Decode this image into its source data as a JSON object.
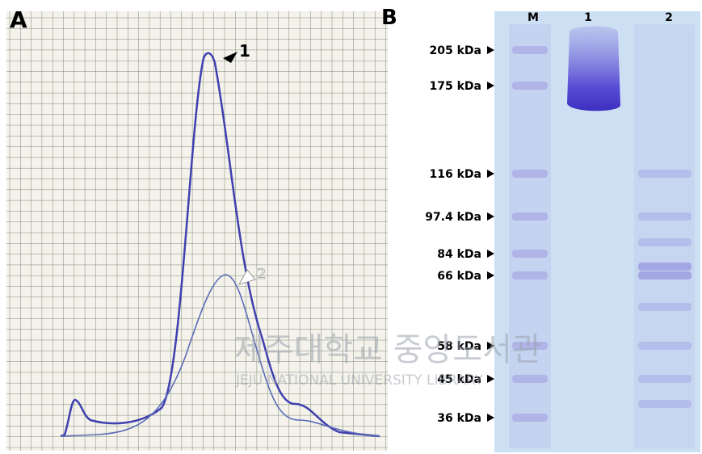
{
  "panel_a": {
    "label": "A",
    "peak_labels": [
      "1",
      "2"
    ]
  },
  "panel_b": {
    "label": "B",
    "lanes": [
      "M",
      "1",
      "2"
    ],
    "markers": [
      "205 kDa",
      "175 kDa",
      "116 kDa",
      "97.4 kDa",
      "84 kDa",
      "66 kDa",
      "58 kDa",
      "45 kDa",
      "36 kDa"
    ]
  },
  "watermark": {
    "korean": "제주대학교 중앙도서관",
    "english": "JEJU NATIONAL UNIVERSITY LIBRARY"
  }
}
